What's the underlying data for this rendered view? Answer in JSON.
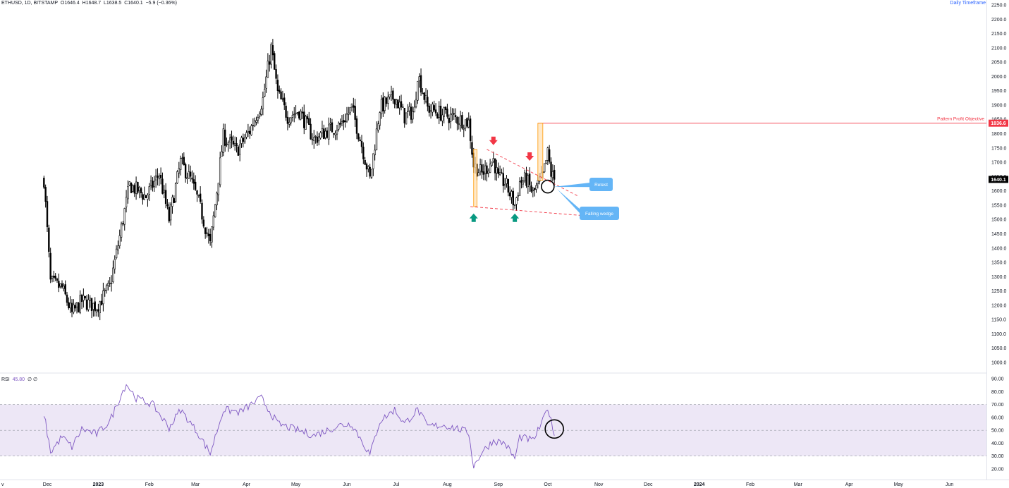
{
  "header": {
    "symbol_line": "ETHUSD, 1D, BITSTAMP",
    "open": "O1646.4",
    "high": "H1648.7",
    "low": "L1638.5",
    "close": "C1640.1",
    "change": "−5.9 (−0.36%)"
  },
  "timeframe_label": "Daily Timeframe",
  "rsi_header": {
    "label": "RSI",
    "value": "45.80",
    "s1": "∅",
    "s2": "∅"
  },
  "annotations": {
    "profit_objective": "Pattern Profit Objective",
    "profit_price": "1836.6",
    "last_price": "1640.1",
    "retest": "Retest",
    "falling_wedge": "Falling wedge"
  },
  "colors": {
    "candle": "#000000",
    "profit_line": "#f23645",
    "wedge": "#f23645",
    "callout": "#64b5f6",
    "bar_fill": "#ffe0b2",
    "bar_stroke": "#ff9800",
    "up_arrow": "#089981",
    "down_arrow": "#f23645",
    "rsi_line": "#7e57c2",
    "rsi_band": "#ede7f6"
  },
  "chart_data": [
    {
      "type": "candlestick",
      "title": "ETHUSD, 1D, BITSTAMP",
      "x_tick_labels": [
        "v",
        "Dec",
        "2023",
        "Feb",
        "Mar",
        "Apr",
        "May",
        "Jun",
        "Jul",
        "Aug",
        "Sep",
        "Oct",
        "Nov",
        "Dec",
        "2024",
        "Feb",
        "Mar",
        "Apr",
        "May",
        "Jun"
      ],
      "y_tick_labels": [
        "2250.0",
        "2200.0",
        "2150.0",
        "2100.0",
        "2050.0",
        "2000.0",
        "1950.0",
        "1900.0",
        "1850.0",
        "1800.0",
        "1750.0",
        "1700.0",
        "1650.0",
        "1600.0",
        "1550.0",
        "1500.0",
        "1450.0",
        "1400.0",
        "1350.0",
        "1300.0",
        "1250.0",
        "1200.0",
        "1150.0",
        "1100.0",
        "1050.0",
        "1000.0"
      ],
      "ylim": [
        980,
        2260
      ],
      "x_range": [
        "2022-11-29",
        "2024-06-30"
      ],
      "price_path_close": [
        [
          "2022-11-29",
          1640
        ],
        [
          "2022-12-03",
          1280
        ],
        [
          "2022-12-10",
          1260
        ],
        [
          "2022-12-16",
          1170
        ],
        [
          "2022-12-22",
          1215
        ],
        [
          "2022-12-31",
          1195
        ],
        [
          "2023-01-08",
          1265
        ],
        [
          "2023-01-14",
          1440
        ],
        [
          "2023-01-20",
          1620
        ],
        [
          "2023-01-30",
          1580
        ],
        [
          "2023-02-07",
          1660
        ],
        [
          "2023-02-13",
          1500
        ],
        [
          "2023-02-20",
          1700
        ],
        [
          "2023-02-26",
          1640
        ],
        [
          "2023-03-03",
          1560
        ],
        [
          "2023-03-10",
          1410
        ],
        [
          "2023-03-18",
          1790
        ],
        [
          "2023-03-26",
          1740
        ],
        [
          "2023-04-03",
          1810
        ],
        [
          "2023-04-11",
          1920
        ],
        [
          "2023-04-16",
          2100
        ],
        [
          "2023-04-20",
          1940
        ],
        [
          "2023-04-26",
          1860
        ],
        [
          "2023-05-03",
          1880
        ],
        [
          "2023-05-12",
          1780
        ],
        [
          "2023-05-20",
          1810
        ],
        [
          "2023-05-28",
          1830
        ],
        [
          "2023-06-04",
          1890
        ],
        [
          "2023-06-10",
          1760
        ],
        [
          "2023-06-15",
          1640
        ],
        [
          "2023-06-21",
          1890
        ],
        [
          "2023-06-30",
          1930
        ],
        [
          "2023-07-06",
          1860
        ],
        [
          "2023-07-12",
          1880
        ],
        [
          "2023-07-14",
          2010
        ],
        [
          "2023-07-20",
          1890
        ],
        [
          "2023-07-28",
          1870
        ],
        [
          "2023-08-08",
          1850
        ],
        [
          "2023-08-14",
          1840
        ],
        [
          "2023-08-17",
          1690
        ],
        [
          "2023-08-22",
          1660
        ],
        [
          "2023-08-29",
          1710
        ],
        [
          "2023-09-01",
          1640
        ],
        [
          "2023-09-05",
          1630
        ],
        [
          "2023-09-11",
          1550
        ],
        [
          "2023-09-14",
          1630
        ],
        [
          "2023-09-18",
          1640
        ],
        [
          "2023-09-22",
          1590
        ],
        [
          "2023-09-28",
          1650
        ],
        [
          "2023-10-01",
          1730
        ],
        [
          "2023-10-03",
          1660
        ],
        [
          "2023-10-05",
          1640.1
        ]
      ]
    },
    {
      "type": "line",
      "title": "RSI",
      "y_tick_labels": [
        "90.00",
        "80.00",
        "70.00",
        "60.00",
        "50.00",
        "40.00",
        "30.00",
        "20.00"
      ],
      "ylim": [
        15,
        92
      ],
      "bands": [
        30,
        50,
        70
      ],
      "rsi_path": [
        [
          "2022-11-29",
          63
        ],
        [
          "2022-12-03",
          33
        ],
        [
          "2022-12-10",
          45
        ],
        [
          "2022-12-16",
          37
        ],
        [
          "2022-12-22",
          51
        ],
        [
          "2022-12-31",
          47
        ],
        [
          "2023-01-08",
          57
        ],
        [
          "2023-01-14",
          75
        ],
        [
          "2023-01-18",
          86
        ],
        [
          "2023-01-24",
          75
        ],
        [
          "2023-02-03",
          70
        ],
        [
          "2023-02-13",
          52
        ],
        [
          "2023-02-20",
          66
        ],
        [
          "2023-03-03",
          47
        ],
        [
          "2023-03-10",
          32
        ],
        [
          "2023-03-18",
          66
        ],
        [
          "2023-03-28",
          64
        ],
        [
          "2023-04-04",
          70
        ],
        [
          "2023-04-10",
          75
        ],
        [
          "2023-04-20",
          55
        ],
        [
          "2023-04-30",
          51
        ],
        [
          "2023-05-12",
          46
        ],
        [
          "2023-05-28",
          54
        ],
        [
          "2023-06-04",
          55
        ],
        [
          "2023-06-15",
          31
        ],
        [
          "2023-06-21",
          57
        ],
        [
          "2023-06-30",
          66
        ],
        [
          "2023-07-06",
          55
        ],
        [
          "2023-07-14",
          66
        ],
        [
          "2023-07-20",
          53
        ],
        [
          "2023-07-30",
          54
        ],
        [
          "2023-08-08",
          51
        ],
        [
          "2023-08-14",
          48
        ],
        [
          "2023-08-17",
          22
        ],
        [
          "2023-08-22",
          33
        ],
        [
          "2023-08-29",
          42
        ],
        [
          "2023-09-05",
          40
        ],
        [
          "2023-09-11",
          28
        ],
        [
          "2023-09-14",
          45
        ],
        [
          "2023-09-22",
          42
        ],
        [
          "2023-09-28",
          57
        ],
        [
          "2023-10-01",
          68
        ],
        [
          "2023-10-05",
          45.8
        ]
      ]
    }
  ]
}
